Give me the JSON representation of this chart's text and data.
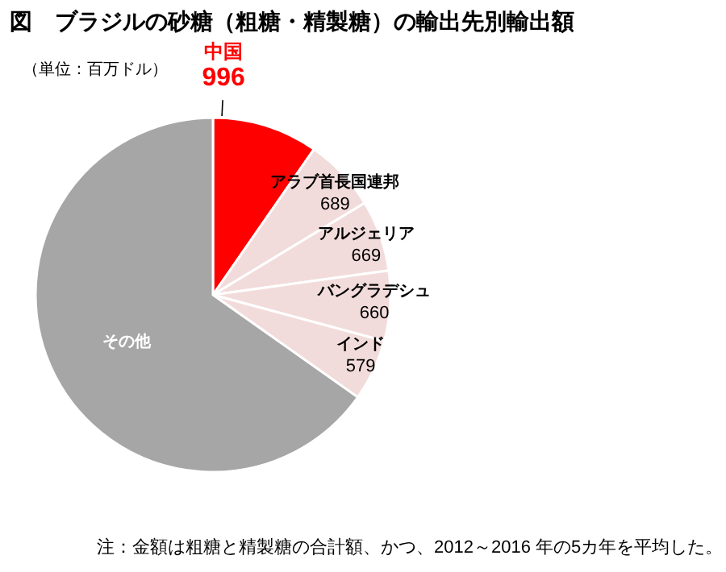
{
  "chart_data": {
    "type": "pie",
    "title": "図　ブラジルの砂糖（粗糖・精製糖）の輸出先別輸出額",
    "annotations": [
      "（単位：百万ドル）",
      "注：金額は粗糖と精製糖の合計額、かつ、2012～2016 年の5カ年を平均した。"
    ],
    "categories": [
      "中国",
      "アラブ首長国連邦",
      "アルジェリア",
      "バングラデシュ",
      "インド",
      "その他"
    ],
    "values": [
      996,
      689,
      669,
      660,
      579,
      6730
    ],
    "value_labels": [
      "996",
      "689",
      "669",
      "660",
      "579",
      null
    ],
    "colors": [
      "#ff0000",
      "#f2dcdb",
      "#f2dcdb",
      "#f2dcdb",
      "#f2dcdb",
      "#a6a6a6"
    ]
  }
}
